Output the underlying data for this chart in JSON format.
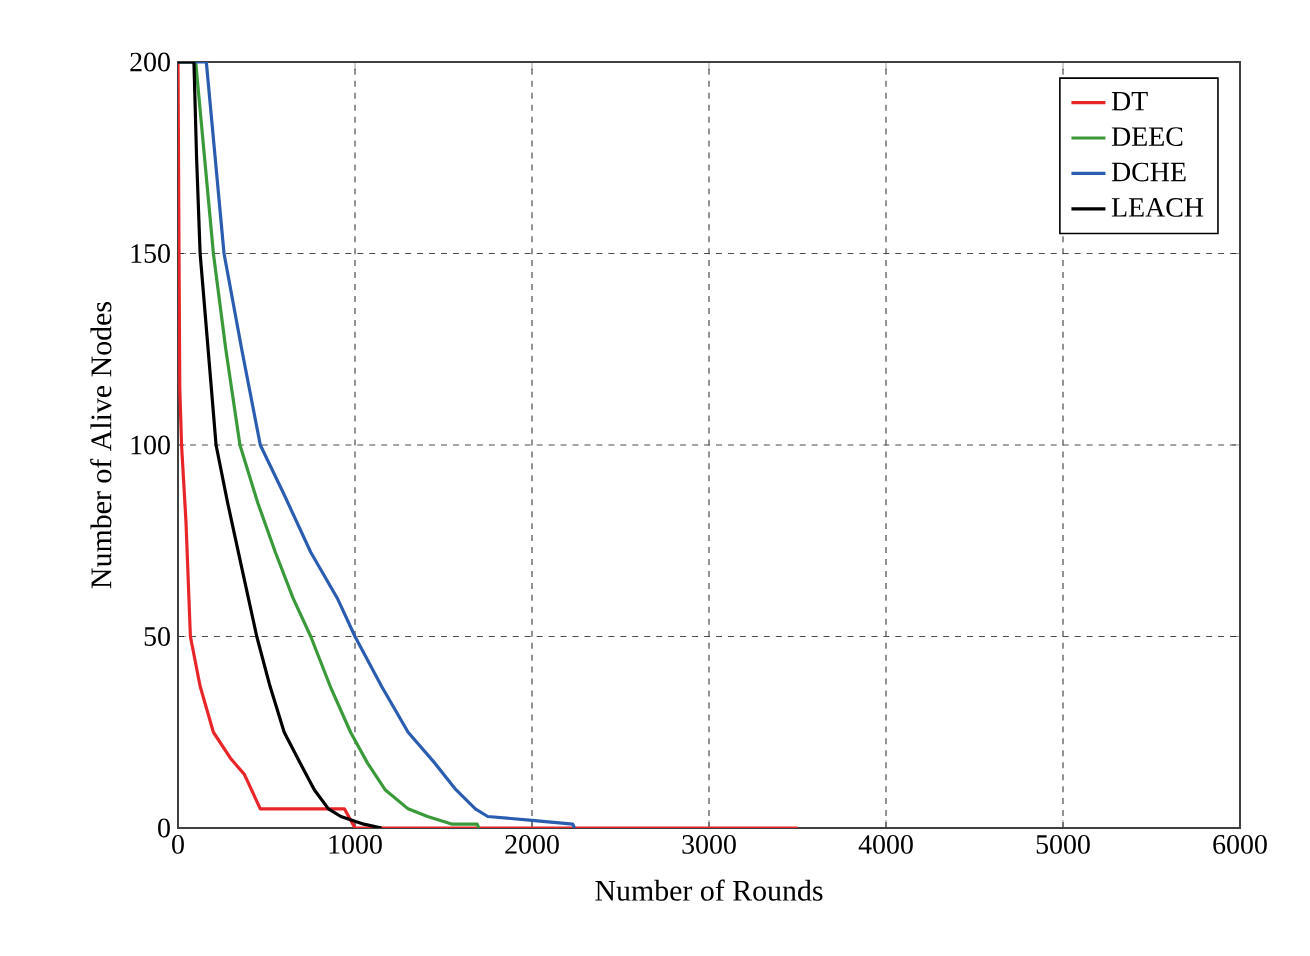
{
  "chart_data": {
    "type": "line",
    "xlabel": "Number of Rounds",
    "ylabel": "Number of Alive Nodes",
    "xlim": [
      0,
      6000
    ],
    "ylim": [
      0,
      200
    ],
    "xticks": [
      0,
      1000,
      2000,
      3000,
      4000,
      5000,
      6000
    ],
    "yticks": [
      0,
      50,
      100,
      150,
      200
    ],
    "grid": true,
    "legend": "top right",
    "line_style": "solid",
    "marker": "none",
    "series": [
      {
        "name": "DT",
        "color": "#e8262a",
        "x": [
          0,
          5,
          10,
          20,
          45,
          70,
          125,
          200,
          300,
          375,
          465,
          700,
          940,
          1000,
          2000,
          3000,
          3500
        ],
        "values": [
          200,
          155,
          115,
          100,
          80,
          50,
          37,
          25,
          18,
          14,
          5,
          5,
          5,
          0,
          0,
          0,
          0
        ]
      },
      {
        "name": "DEEC",
        "color": "#3a9a3a",
        "x": [
          0,
          100,
          150,
          200,
          270,
          350,
          450,
          550,
          650,
          750,
          860,
          975,
          1070,
          1170,
          1300,
          1410,
          1550,
          1690,
          1700
        ],
        "values": [
          200,
          200,
          175,
          150,
          125,
          100,
          85,
          72,
          60,
          50,
          37,
          25,
          17,
          10,
          5,
          3,
          1,
          1,
          0
        ]
      },
      {
        "name": "DCHE",
        "color": "#2a5db0",
        "x": [
          0,
          160,
          210,
          260,
          360,
          465,
          600,
          750,
          900,
          1000,
          1150,
          1300,
          1450,
          1570,
          1680,
          1750,
          2000,
          2230,
          2240
        ],
        "values": [
          200,
          200,
          175,
          150,
          125,
          100,
          87,
          72,
          60,
          50,
          37,
          25,
          17,
          10,
          5,
          3,
          2,
          1,
          0
        ]
      },
      {
        "name": "LEACH",
        "color": "#000000",
        "x": [
          0,
          90,
          105,
          125,
          170,
          215,
          280,
          360,
          445,
          520,
          600,
          690,
          770,
          850,
          920,
          1050,
          1150
        ],
        "values": [
          200,
          200,
          175,
          150,
          125,
          100,
          85,
          68,
          50,
          37,
          25,
          17,
          10,
          5,
          3,
          1,
          0
        ]
      }
    ]
  }
}
